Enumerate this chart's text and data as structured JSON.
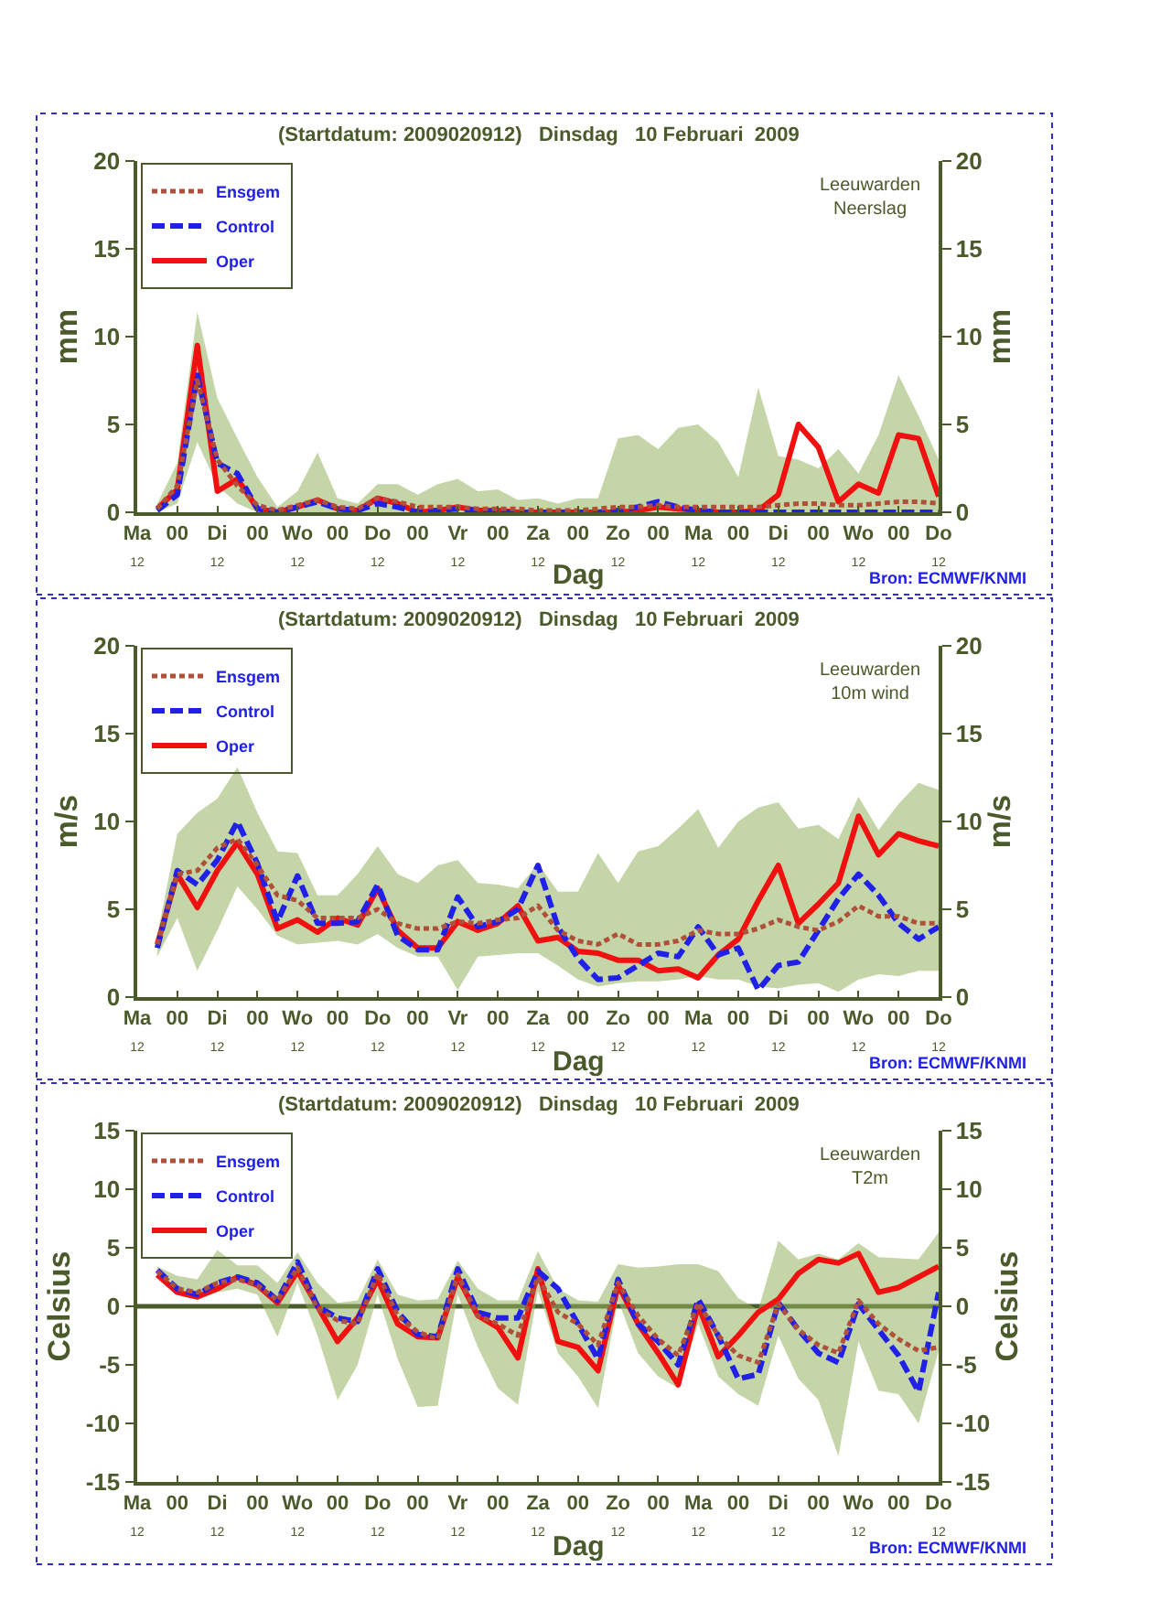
{
  "chart_data": [
    {
      "type": "line",
      "title": "(Startdatum: 2009020912)   Dinsdag   10 Februari  2009",
      "xlabel": "Dag",
      "ylabel": "mm",
      "y2label": "mm",
      "annotations": [
        "Leeuwarden\nNeerslag",
        "Bron: ECMWF/KNMI"
      ],
      "categories": [
        "Ma\n12",
        null,
        "00",
        null,
        "Di\n12",
        null,
        "00",
        null,
        "Wo\n12",
        null,
        "00",
        null,
        "Do\n12",
        null,
        "00",
        null,
        "Vr\n12",
        null,
        "00",
        null,
        "Za\n12",
        null,
        "00",
        null,
        "Zo\n12",
        null,
        "00",
        null,
        "Ma\n12",
        null,
        "00",
        null,
        "Di\n12",
        null,
        "00",
        null,
        "Wo\n12",
        null,
        "00",
        null,
        "Do\n12"
      ],
      "ylim": [
        0,
        20
      ],
      "yticks": [
        0,
        5,
        10,
        15,
        20
      ],
      "y2lim": [
        0,
        20
      ],
      "y2ticks": [
        0,
        5,
        10,
        15,
        20
      ],
      "legend": "top left",
      "series": [
        {
          "name": "Ensgem",
          "color": "#b0503a",
          "line_style": "dotted",
          "values": [
            null,
            0.2,
            1.5,
            7.5,
            3,
            1.5,
            0.4,
            0.1,
            0.4,
            0.7,
            0.3,
            0.2,
            0.8,
            0.6,
            0.3,
            0.3,
            0.3,
            0.2,
            0.2,
            0.2,
            0.1,
            0.1,
            0.1,
            0.2,
            0.3,
            0.3,
            0.4,
            0.3,
            0.3,
            0.3,
            0.3,
            0.3,
            0.4,
            0.5,
            0.5,
            0.4,
            0.4,
            0.5,
            0.6,
            0.6,
            0.5
          ],
          "lower": [
            null,
            0,
            0.5,
            4,
            1.5,
            0.5,
            0,
            0,
            0,
            0,
            0,
            0,
            0,
            0,
            0,
            0,
            0,
            0,
            0,
            0,
            0,
            0,
            0,
            0,
            0,
            0,
            0,
            0,
            0,
            0,
            0,
            0,
            0,
            0,
            0,
            0,
            0,
            0,
            0,
            0,
            0
          ],
          "upper": [
            null,
            0.5,
            2.8,
            11.4,
            6.5,
            4.2,
            2,
            0.3,
            1.2,
            3.4,
            0.8,
            0.5,
            1.6,
            1.6,
            1,
            1.6,
            1.9,
            1.2,
            1.3,
            0.7,
            0.8,
            0.5,
            0.8,
            0.8,
            4.2,
            4.4,
            3.6,
            4.8,
            5,
            4,
            2,
            7.1,
            3.2,
            3,
            2.5,
            3.6,
            2.2,
            4.4,
            7.8,
            5.5,
            3
          ]
        },
        {
          "name": "Control",
          "color": "#2020e8",
          "line_style": "dashed",
          "values": [
            null,
            0.1,
            1,
            7.8,
            2.8,
            2.2,
            0.2,
            0,
            0.3,
            0.6,
            0.2,
            0.1,
            0.5,
            0.3,
            0,
            0.1,
            0.2,
            0.1,
            0,
            0,
            0,
            0,
            0,
            0,
            0.1,
            0.3,
            0.6,
            0.3,
            0.1,
            0,
            0,
            0,
            0,
            0,
            0,
            0,
            0,
            0,
            0,
            0,
            0
          ]
        },
        {
          "name": "Oper",
          "color": "#f01010",
          "line_style": "solid",
          "values": [
            null,
            0.2,
            1.3,
            9.5,
            1.2,
            1.9,
            0.2,
            0,
            0.3,
            0.7,
            0.2,
            0.1,
            0.8,
            0.5,
            0,
            0.1,
            0.3,
            0.1,
            0.1,
            0,
            0,
            0,
            0,
            0,
            0,
            0.1,
            0.3,
            0.2,
            0.1,
            0,
            0,
            0.1,
            1,
            5,
            3.7,
            0.6,
            1.6,
            1.1,
            4.4,
            4.2,
            0.9
          ]
        }
      ]
    },
    {
      "type": "line",
      "title": "(Startdatum: 2009020912)   Dinsdag   10 Februari  2009",
      "xlabel": "Dag",
      "ylabel": "m/s",
      "y2label": "m/s",
      "annotations": [
        "Leeuwarden\n10m wind",
        "Bron: ECMWF/KNMI"
      ],
      "categories": [
        "Ma\n12",
        null,
        "00",
        null,
        "Di\n12",
        null,
        "00",
        null,
        "Wo\n12",
        null,
        "00",
        null,
        "Do\n12",
        null,
        "00",
        null,
        "Vr\n12",
        null,
        "00",
        null,
        "Za\n12",
        null,
        "00",
        null,
        "Zo\n12",
        null,
        "00",
        null,
        "Ma\n12",
        null,
        "00",
        null,
        "Di\n12",
        null,
        "00",
        null,
        "Wo\n12",
        null,
        "00",
        null,
        "Do\n12"
      ],
      "ylim": [
        0,
        20
      ],
      "yticks": [
        0,
        5,
        10,
        15,
        20
      ],
      "y2lim": [
        0,
        20
      ],
      "y2ticks": [
        0,
        5,
        10,
        15,
        20
      ],
      "legend": "top left",
      "series": [
        {
          "name": "Ensgem",
          "color": "#b0503a",
          "line_style": "dotted",
          "values": [
            null,
            3,
            7,
            7.2,
            8.5,
            9,
            7.5,
            5.8,
            5.5,
            4.5,
            4.5,
            4.5,
            5,
            4.2,
            3.9,
            3.9,
            4.3,
            4.2,
            4.4,
            4.5,
            5.2,
            3.8,
            3.2,
            3,
            3.6,
            3,
            3,
            3.2,
            3.8,
            3.6,
            3.6,
            3.9,
            4.4,
            4,
            3.8,
            4.3,
            5.2,
            4.6,
            4.6,
            4.2,
            4.2
          ],
          "lower": [
            null,
            2.3,
            4.5,
            1.5,
            3.8,
            6.3,
            5,
            3.5,
            3,
            3.1,
            3.2,
            3,
            3.6,
            2.8,
            2.3,
            2.3,
            0.4,
            2.3,
            2.4,
            2.5,
            2.5,
            1.8,
            1,
            0.6,
            0.8,
            0.9,
            0.9,
            1,
            1.2,
            1,
            1,
            0.6,
            0.5,
            0.7,
            0.8,
            0.3,
            1,
            1.3,
            1.2,
            1.5,
            1.5
          ],
          "upper": [
            null,
            3.5,
            9.3,
            10.5,
            11.3,
            13.1,
            10.5,
            8.3,
            8.2,
            5.8,
            5.8,
            7,
            8.6,
            7,
            6.5,
            7.5,
            7.8,
            6.5,
            6.4,
            6.2,
            7.6,
            6,
            6,
            8.2,
            6.5,
            8.3,
            8.6,
            9.6,
            10.7,
            8.5,
            10,
            10.8,
            11.1,
            9.6,
            9.8,
            9,
            11.4,
            9.5,
            11,
            12.2,
            11.8
          ]
        },
        {
          "name": "Control",
          "color": "#2020e8",
          "line_style": "dashed",
          "values": [
            null,
            2.8,
            7.2,
            6.4,
            7.8,
            10,
            7.6,
            4.3,
            6.9,
            4.2,
            4.2,
            4.3,
            6.4,
            3.5,
            2.7,
            2.7,
            5.7,
            4,
            4.3,
            5,
            7.5,
            4,
            2.2,
            1,
            1.1,
            1.8,
            2.5,
            2.3,
            4,
            2.4,
            2.8,
            0.4,
            1.8,
            2,
            3.8,
            5.6,
            7,
            5.8,
            4.2,
            3.3,
            4
          ]
        },
        {
          "name": "Oper",
          "color": "#f01010",
          "line_style": "solid",
          "values": [
            null,
            3,
            7,
            5.1,
            7.2,
            8.8,
            7,
            3.9,
            4.4,
            3.7,
            4.5,
            4.1,
            6.2,
            3.8,
            2.8,
            2.8,
            4.3,
            3.8,
            4.2,
            5.2,
            3.2,
            3.4,
            2.6,
            2.5,
            2.1,
            2.1,
            1.5,
            1.6,
            1.1,
            2.4,
            3.3,
            5.5,
            7.5,
            4.2,
            5.3,
            6.5,
            10.3,
            8.1,
            9.3,
            8.9,
            8.6
          ]
        }
      ]
    },
    {
      "type": "line",
      "title": "(Startdatum: 2009020912)   Dinsdag   10 Februari  2009",
      "xlabel": "Dag",
      "ylabel": "Celsius",
      "y2label": "Celsius",
      "annotations": [
        "Leeuwarden\nT2m",
        "Bron: ECMWF/KNMI"
      ],
      "categories": [
        "Ma\n12",
        null,
        "00",
        null,
        "Di\n12",
        null,
        "00",
        null,
        "Wo\n12",
        null,
        "00",
        null,
        "Do\n12",
        null,
        "00",
        null,
        "Vr\n12",
        null,
        "00",
        null,
        "Za\n12",
        null,
        "00",
        null,
        "Zo\n12",
        null,
        "00",
        null,
        "Ma\n12",
        null,
        "00",
        null,
        "Di\n12",
        null,
        "00",
        null,
        "Wo\n12",
        null,
        "00",
        null,
        "Do\n12"
      ],
      "ylim": [
        -15,
        15
      ],
      "yticks": [
        -15,
        -10,
        -5,
        0,
        5,
        10,
        15
      ],
      "y2lim": [
        -15,
        15
      ],
      "y2ticks": [
        -15,
        -10,
        -5,
        0,
        5,
        10,
        15
      ],
      "legend": "top left",
      "ref_lines": [
        {
          "axis": "y",
          "value": 0,
          "color": "#4a5a2a"
        }
      ],
      "series": [
        {
          "name": "Ensgem",
          "color": "#b0503a",
          "line_style": "dotted",
          "values": [
            null,
            3,
            1.5,
            1.2,
            2,
            2.3,
            1.8,
            0.5,
            3.3,
            -0.2,
            -1.2,
            -1.5,
            2.8,
            -0.8,
            -2.2,
            -2.8,
            2.7,
            -0.8,
            -1.5,
            -2.5,
            2.5,
            -0.5,
            -1.5,
            -3.3,
            2,
            -0.8,
            -2.8,
            -4.2,
            0.3,
            -2.5,
            -4.2,
            -4.8,
            0.2,
            -2,
            -3.3,
            -4,
            0.5,
            -1.5,
            -2.8,
            -3.8,
            -3.5
          ],
          "lower": [
            null,
            2.5,
            1,
            0.6,
            1.2,
            1.5,
            1,
            -2.6,
            2,
            -2.5,
            -8,
            -5,
            1,
            -4.5,
            -8.6,
            -8.5,
            1,
            -3.5,
            -7,
            -8.4,
            1.3,
            -4,
            -6,
            -8.7,
            0.5,
            -4,
            -6,
            -7,
            -1.5,
            -6,
            -7.5,
            -8.5,
            -2.5,
            -6.2,
            -8,
            -12.8,
            -3,
            -7.2,
            -7.5,
            -10,
            -3.8
          ],
          "upper": [
            null,
            3.4,
            2.6,
            2.3,
            4.8,
            3.5,
            3.5,
            2,
            4.6,
            2,
            0.3,
            0.5,
            4,
            1,
            0.5,
            0.6,
            3.9,
            1.5,
            0.5,
            0.5,
            4.7,
            1.5,
            0.5,
            0.4,
            3.6,
            3.3,
            3.4,
            3.6,
            3.6,
            3,
            0.7,
            -0.3,
            5.6,
            4,
            4.5,
            4,
            5.4,
            4.2,
            4.1,
            4,
            6.3
          ]
        },
        {
          "name": "Control",
          "color": "#2020e8",
          "line_style": "dashed",
          "values": [
            null,
            3.1,
            1.5,
            1,
            2,
            2.5,
            2,
            0.5,
            3.8,
            0,
            -1,
            -1.3,
            3.2,
            -0.5,
            -2.4,
            -2.6,
            3.2,
            -0.5,
            -1,
            -1,
            3,
            1.5,
            -1.5,
            -4.5,
            2.3,
            -1.5,
            -3,
            -5,
            0.6,
            -2.5,
            -6.2,
            -5.8,
            0.3,
            -2,
            -4,
            -4.8,
            0.2,
            -2,
            -4.2,
            -7.3,
            1.2
          ]
        },
        {
          "name": "Oper",
          "color": "#f01010",
          "line_style": "solid",
          "values": [
            null,
            2.7,
            1.2,
            0.8,
            1.5,
            2.5,
            1.8,
            0.3,
            3,
            0,
            -3,
            -1,
            2.3,
            -1.5,
            -2.6,
            -2.7,
            2.5,
            -0.8,
            -1.8,
            -4.4,
            3.2,
            -3,
            -3.5,
            -5.5,
            1.8,
            -1.5,
            -4,
            -6.7,
            0.1,
            -4.3,
            -2.5,
            -0.5,
            0.6,
            2.8,
            4,
            3.7,
            4.5,
            1.2,
            1.6,
            2.5,
            3.4
          ]
        }
      ]
    }
  ]
}
